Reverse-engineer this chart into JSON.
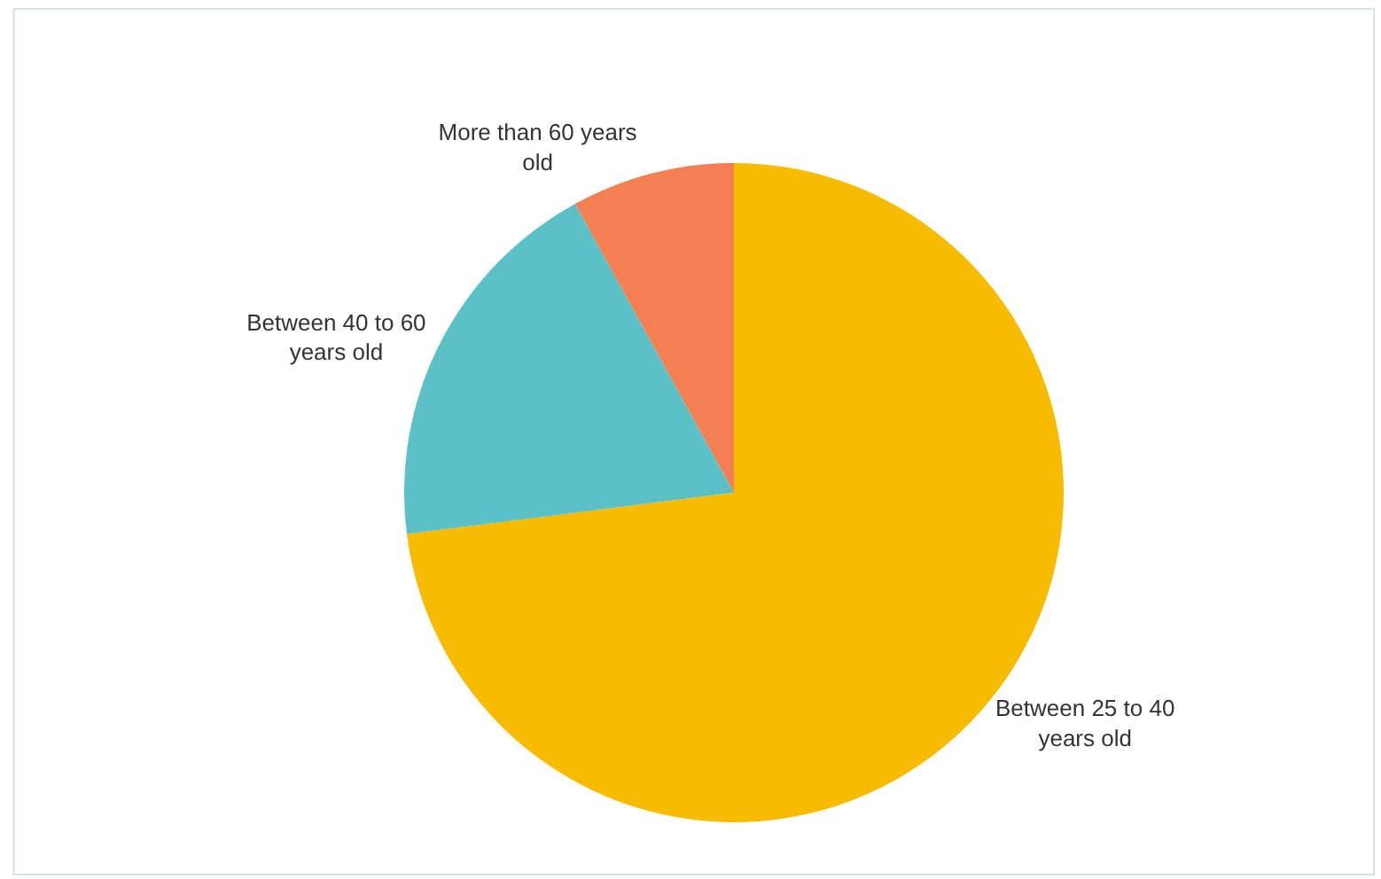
{
  "chart_data": {
    "type": "pie",
    "categories": [
      "Between 25 to 40 years old",
      "Between 40 to 60 years old",
      "More than 60 years old"
    ],
    "values": [
      73,
      19,
      8
    ],
    "colors": [
      "#f7bb00",
      "#5cc1c6",
      "#f47f52"
    ],
    "legend": false
  }
}
